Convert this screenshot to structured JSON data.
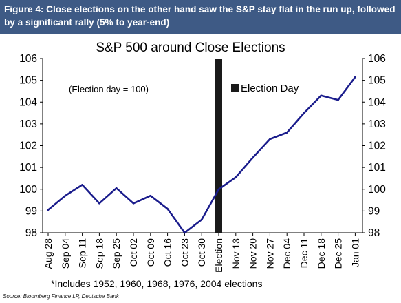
{
  "header": {
    "figure_caption": "Figure 4: Close elections on the other hand saw the S&P stay flat in the run up, followed by a significant rally (5% to year-end)"
  },
  "chart_data": {
    "type": "line",
    "title": "S&P 500 around Close Elections",
    "annotation": "(Election day = 100)",
    "legend": {
      "label": "Election Day",
      "placement": "top-center"
    },
    "footnote": "*Includes 1952, 1960, 1968, 1976, 2004 elections",
    "source": "Source: Bloomberg Finance LP, Deutsche Bank",
    "colors": {
      "line": "#1a1c8c",
      "election_bar": "#1a1a1a",
      "header_bg": "#3e5a85"
    },
    "ylim": [
      98,
      106
    ],
    "yticks": [
      "98",
      "99",
      "100",
      "101",
      "102",
      "103",
      "104",
      "105",
      "106"
    ],
    "categories": [
      "Aug 28",
      "Sep 04",
      "Sep 11",
      "Sep 18",
      "Sep 25",
      "Oct 02",
      "Oct 09",
      "Oct 16",
      "Oct 23",
      "Oct 30",
      "Election",
      "Nov 13",
      "Nov 20",
      "Nov 27",
      "Dec 04",
      "Dec 11",
      "Dec 18",
      "Dec 25",
      "Jan 01"
    ],
    "election_index": 10,
    "series": [
      {
        "values": [
          99.05,
          99.7,
          100.2,
          99.35,
          100.05,
          99.35,
          99.7,
          99.1,
          98.0,
          98.6,
          100.0,
          100.55,
          101.45,
          102.3,
          102.6,
          103.5,
          104.3,
          104.1,
          105.15
        ]
      }
    ],
    "grid": false,
    "right_axis": true
  }
}
